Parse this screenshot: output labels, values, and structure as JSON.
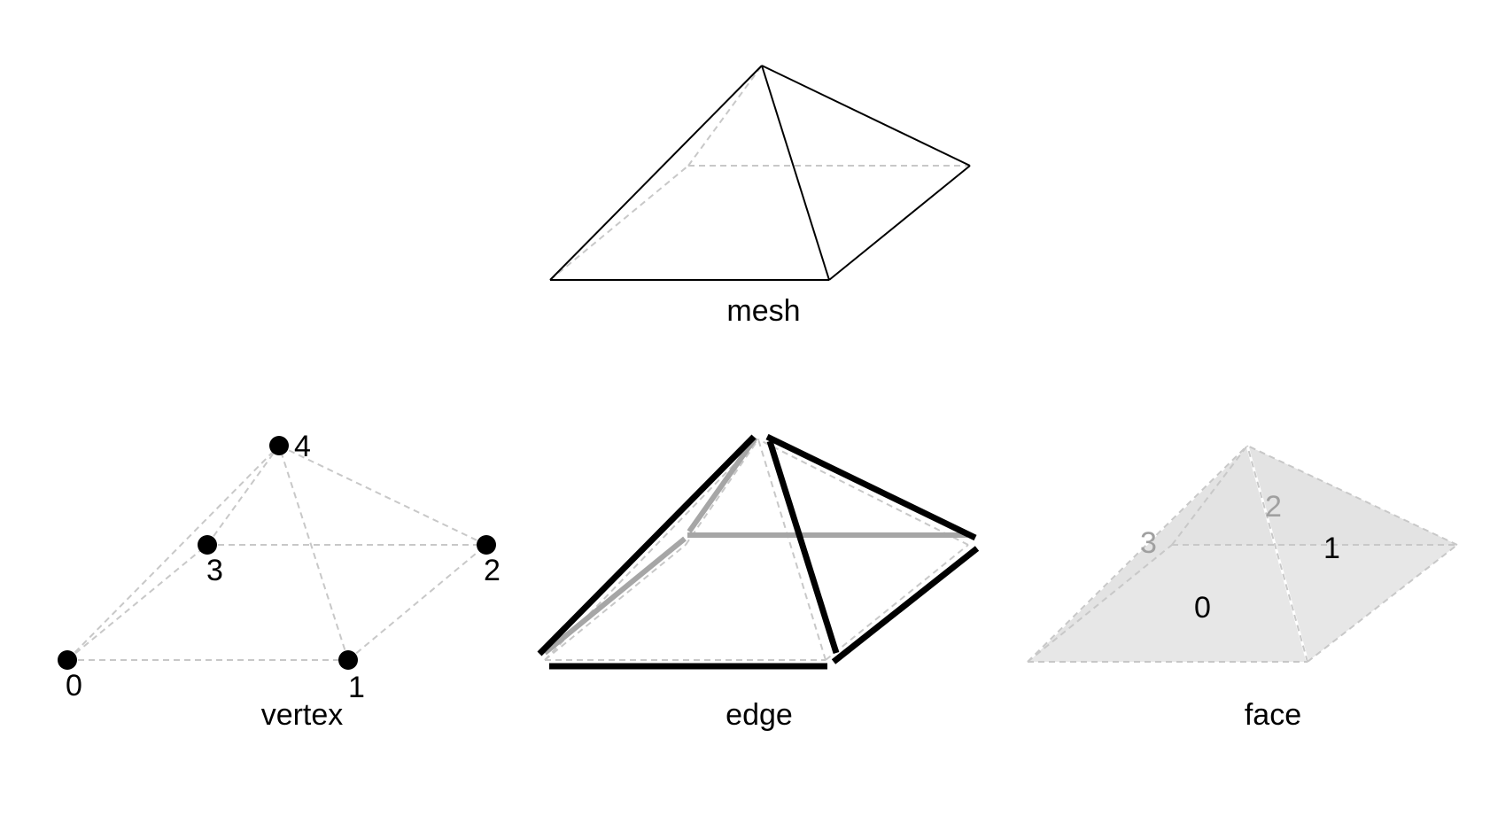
{
  "colors": {
    "solid": "#000000",
    "dashed": "#c8c8c8",
    "hidden_edge": "#a6a6a6",
    "face_light": "#e4e4e4",
    "face_dark": "#d2d2d2",
    "label_hidden": "#a0a0a0"
  },
  "panels": {
    "mesh": {
      "caption": "mesh"
    },
    "vertex": {
      "caption": "vertex",
      "labels": [
        "0",
        "1",
        "2",
        "3",
        "4"
      ]
    },
    "edge": {
      "caption": "edge"
    },
    "face": {
      "caption": "face",
      "labels": [
        "0",
        "1",
        "2",
        "3"
      ]
    }
  }
}
